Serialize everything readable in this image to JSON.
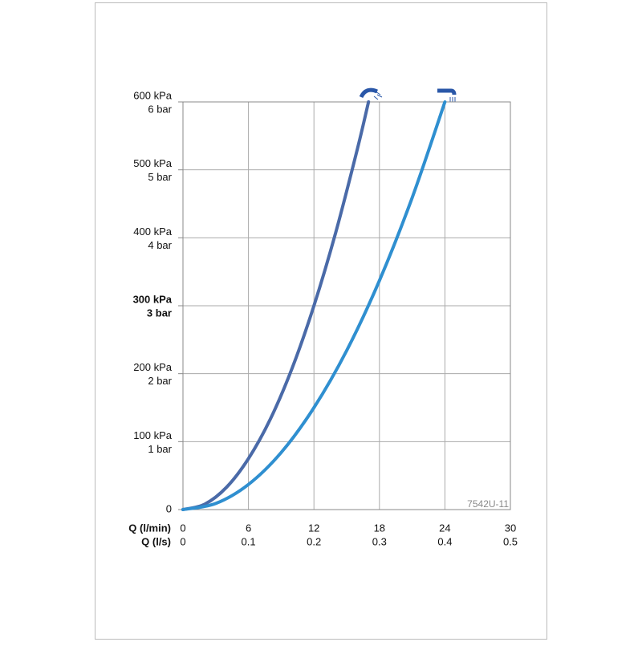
{
  "chart_data": {
    "type": "line",
    "annotation": "7542U-11",
    "xlabel": "Q (l/min)",
    "x2label": "Q (l/s)",
    "xlim": [
      0,
      30
    ],
    "xticks": [
      0,
      6,
      12,
      18,
      24,
      30
    ],
    "x2lim": [
      0,
      0.5
    ],
    "x2ticks": [
      0,
      0.1,
      0.2,
      0.3,
      0.4,
      0.5
    ],
    "ylim": [
      0,
      600
    ],
    "yticks": [
      0,
      {
        "value": 100,
        "label": "100 kPa"
      },
      {
        "value": 200,
        "label": "200 kPa"
      },
      {
        "value": 300,
        "label": "300 kPa"
      },
      {
        "value": 400,
        "label": "400 kPa"
      },
      {
        "value": 500,
        "label": "500 kPa"
      },
      {
        "value": 600,
        "label": "600 kPa"
      }
    ],
    "y2lim": [
      0,
      6
    ],
    "y2ticks": [
      {
        "value": 1,
        "label": "1 bar"
      },
      {
        "value": 2,
        "label": "2 bar"
      },
      {
        "value": 3,
        "label": "3 bar"
      },
      {
        "value": 4,
        "label": "4 bar"
      },
      {
        "value": 5,
        "label": "5 bar"
      },
      {
        "value": 6,
        "label": "6 bar"
      }
    ],
    "bold_ytick": 300,
    "grid": true,
    "series": [
      {
        "color": "#4a6aa8",
        "x": [
          0,
          2,
          4,
          6,
          8,
          10,
          12,
          14,
          16,
          17
        ],
        "values": [
          0,
          8,
          33,
          75,
          133,
          208,
          300,
          408,
          532,
          600
        ]
      },
      {
        "color": "#2f8fd0",
        "x": [
          0,
          3,
          6,
          9,
          12,
          15,
          18,
          21,
          24
        ],
        "values": [
          0,
          9,
          37,
          84,
          150,
          234,
          337,
          459,
          600
        ]
      }
    ]
  }
}
